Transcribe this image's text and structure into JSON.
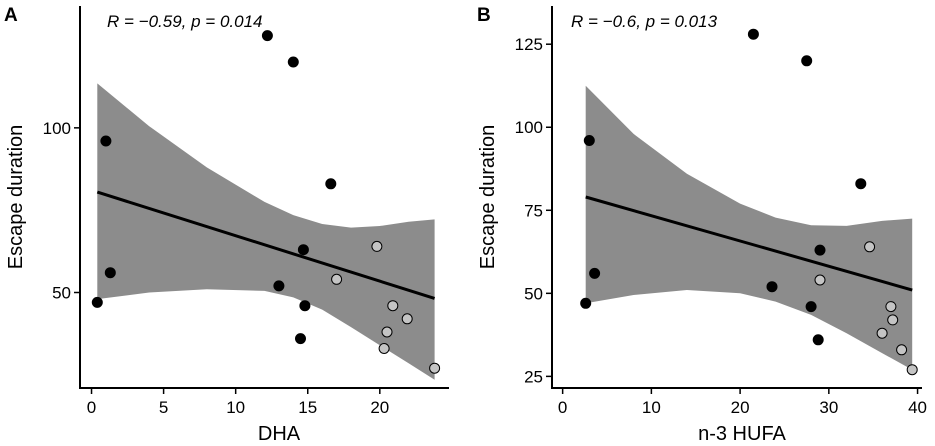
{
  "chart_data": [
    {
      "type": "scatter",
      "panel": "A",
      "stat_r": "R = −0.59, ",
      "stat_p": "p = 0.014",
      "xlabel": "DHA",
      "ylabel": "Escape duration",
      "xlim": [
        -0.8,
        24.8
      ],
      "ylim": [
        21,
        137
      ],
      "xticks": [
        0,
        5,
        10,
        15,
        20
      ],
      "yticks": [
        50,
        100
      ],
      "fit": {
        "x": [
          0.4,
          23.8
        ],
        "y": [
          80.5,
          48.2
        ]
      },
      "band": {
        "x": [
          0.4,
          4,
          8,
          12,
          14,
          16,
          18,
          20,
          22,
          23.8
        ],
        "upper": [
          113.5,
          100.5,
          88.0,
          77.5,
          73.5,
          70.8,
          69.7,
          70.2,
          71.5,
          72.2
        ],
        "lower": [
          48.0,
          50.0,
          51.0,
          50.5,
          48.5,
          44.8,
          39.5,
          34.0,
          28.5,
          23.5
        ]
      },
      "points": [
        {
          "x": 12.2,
          "y": 128,
          "group": "black"
        },
        {
          "x": 14.0,
          "y": 120,
          "group": "black"
        },
        {
          "x": 1.0,
          "y": 96,
          "group": "black"
        },
        {
          "x": 16.6,
          "y": 83,
          "group": "black"
        },
        {
          "x": 14.7,
          "y": 63,
          "group": "black"
        },
        {
          "x": 1.3,
          "y": 56,
          "group": "black"
        },
        {
          "x": 13.0,
          "y": 52,
          "group": "black"
        },
        {
          "x": 0.4,
          "y": 47,
          "group": "black"
        },
        {
          "x": 14.8,
          "y": 46,
          "group": "black"
        },
        {
          "x": 14.5,
          "y": 36,
          "group": "black"
        },
        {
          "x": 19.8,
          "y": 64,
          "group": "grey"
        },
        {
          "x": 17.0,
          "y": 54,
          "group": "grey"
        },
        {
          "x": 20.9,
          "y": 46,
          "group": "grey"
        },
        {
          "x": 21.9,
          "y": 42,
          "group": "grey"
        },
        {
          "x": 20.5,
          "y": 38,
          "group": "grey"
        },
        {
          "x": 20.3,
          "y": 33,
          "group": "grey"
        },
        {
          "x": 23.8,
          "y": 27,
          "group": "grey"
        }
      ]
    },
    {
      "type": "scatter",
      "panel": "B",
      "stat_r": "R = −0.6, ",
      "stat_p": "p = 0.013",
      "xlabel": "n-3 HUFA",
      "ylabel": "Escape duration",
      "xlim": [
        -1.2,
        40.5
      ],
      "ylim": [
        21.5,
        136.5
      ],
      "xticks": [
        0,
        10,
        20,
        30,
        40
      ],
      "yticks": [
        25,
        50,
        75,
        100,
        125
      ],
      "fit": {
        "x": [
          2.6,
          39.4
        ],
        "y": [
          79.0,
          51.0
        ]
      },
      "band": {
        "x": [
          2.6,
          8,
          14,
          20,
          24,
          28,
          32,
          36,
          39.4
        ],
        "upper": [
          112.5,
          98.0,
          86.0,
          77.0,
          72.8,
          70.5,
          70.3,
          71.8,
          72.5
        ],
        "lower": [
          47.0,
          49.5,
          51.0,
          50.0,
          47.5,
          43.5,
          38.0,
          32.0,
          27.0
        ]
      },
      "points": [
        {
          "x": 21.5,
          "y": 128,
          "group": "black"
        },
        {
          "x": 27.5,
          "y": 120,
          "group": "black"
        },
        {
          "x": 3.0,
          "y": 96,
          "group": "black"
        },
        {
          "x": 33.6,
          "y": 83,
          "group": "black"
        },
        {
          "x": 29.0,
          "y": 63,
          "group": "black"
        },
        {
          "x": 3.6,
          "y": 56,
          "group": "black"
        },
        {
          "x": 23.6,
          "y": 52,
          "group": "black"
        },
        {
          "x": 2.6,
          "y": 47,
          "group": "black"
        },
        {
          "x": 28.0,
          "y": 46,
          "group": "black"
        },
        {
          "x": 28.8,
          "y": 36,
          "group": "black"
        },
        {
          "x": 34.6,
          "y": 64,
          "group": "grey"
        },
        {
          "x": 29.0,
          "y": 54,
          "group": "grey"
        },
        {
          "x": 37.0,
          "y": 46,
          "group": "grey"
        },
        {
          "x": 37.2,
          "y": 42,
          "group": "grey"
        },
        {
          "x": 36.0,
          "y": 38,
          "group": "grey"
        },
        {
          "x": 38.2,
          "y": 33,
          "group": "grey"
        },
        {
          "x": 39.4,
          "y": 27,
          "group": "grey"
        }
      ]
    }
  ],
  "colors": {
    "black_points": "#000000",
    "grey_points": "#c4c4c4",
    "band": "#8c8c8c",
    "line": "#000000"
  }
}
